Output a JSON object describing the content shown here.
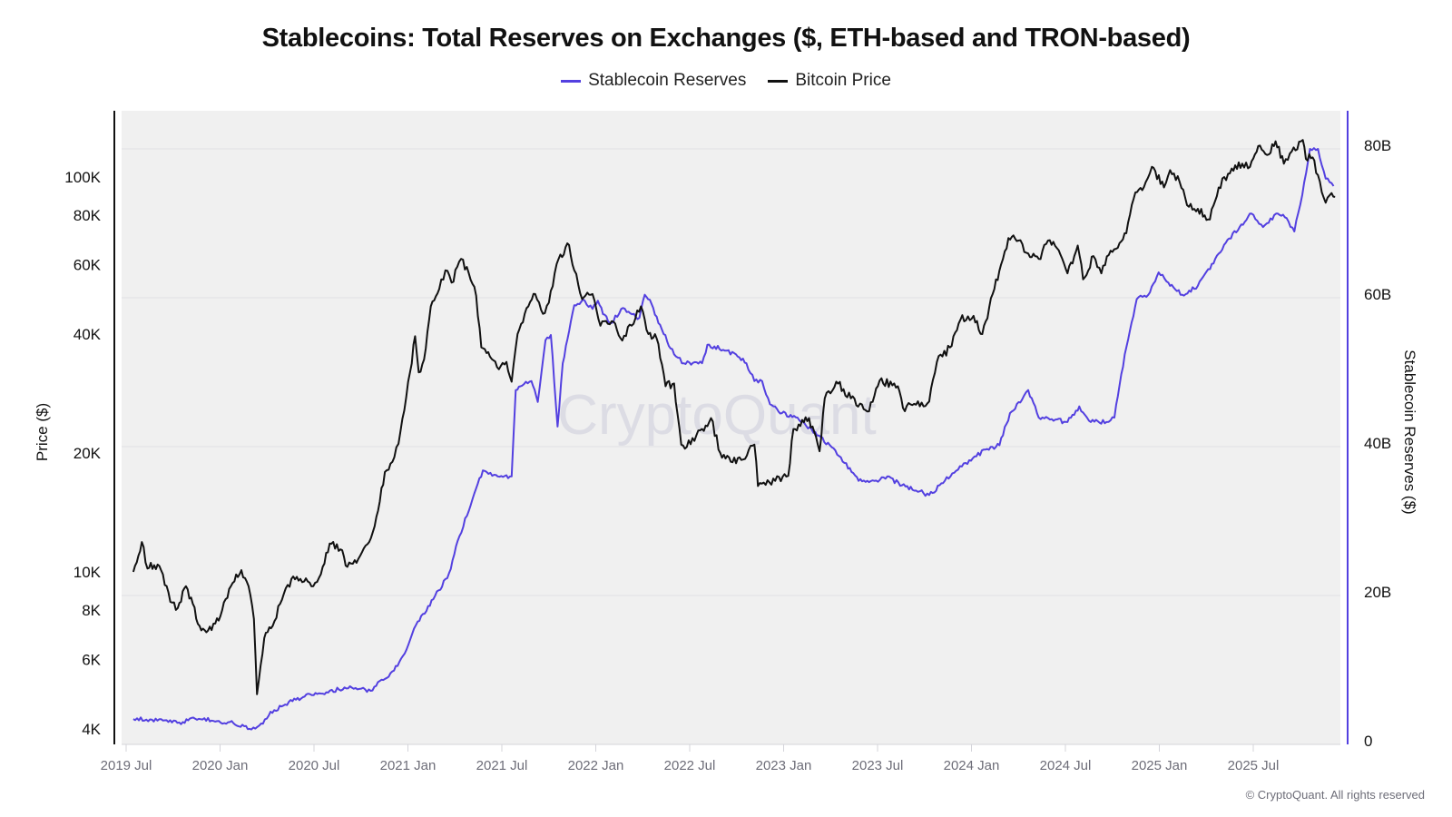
{
  "chart_data": {
    "type": "line",
    "title": "Stablecoins: Total Reserves on Exchanges ($, ETH-based and TRON-based)",
    "legend": {
      "placement": "top-center",
      "entries": [
        {
          "name": "Stablecoin Reserves",
          "color": "#5340e0"
        },
        {
          "name": "Bitcoin Price",
          "color": "#111111"
        }
      ]
    },
    "watermark": "CryptoQuant",
    "copyright": "© CryptoQuant. All rights reserved",
    "x_axis": {
      "type": "time",
      "range": [
        "2019-07-01",
        "2025-12-15"
      ],
      "ticks": [
        {
          "date": "2019-07-01",
          "label": "2019 Jul"
        },
        {
          "date": "2020-01-01",
          "label": "2020 Jan"
        },
        {
          "date": "2020-07-01",
          "label": "2020 Jul"
        },
        {
          "date": "2021-01-01",
          "label": "2021 Jan"
        },
        {
          "date": "2021-07-01",
          "label": "2021 Jul"
        },
        {
          "date": "2022-01-01",
          "label": "2022 Jan"
        },
        {
          "date": "2022-07-01",
          "label": "2022 Jul"
        },
        {
          "date": "2023-01-01",
          "label": "2023 Jan"
        },
        {
          "date": "2023-07-01",
          "label": "2023 Jul"
        },
        {
          "date": "2024-01-01",
          "label": "2024 Jan"
        },
        {
          "date": "2024-07-01",
          "label": "2024 Jul"
        },
        {
          "date": "2025-01-01",
          "label": "2025 Jan"
        },
        {
          "date": "2025-07-01",
          "label": "2025 Jul"
        }
      ]
    },
    "y_left": {
      "label": "Price ($)",
      "scale": "log",
      "range": [
        4000,
        130000
      ],
      "ticks": [
        {
          "value": 4000,
          "label": "4K"
        },
        {
          "value": 6000,
          "label": "6K"
        },
        {
          "value": 8000,
          "label": "8K"
        },
        {
          "value": 10000,
          "label": "10K"
        },
        {
          "value": 20000,
          "label": "20K"
        },
        {
          "value": 40000,
          "label": "40K"
        },
        {
          "value": 60000,
          "label": "60K"
        },
        {
          "value": 80000,
          "label": "80K"
        },
        {
          "value": 100000,
          "label": "100K"
        }
      ]
    },
    "y_right": {
      "label": "Stablecoin Reserves ($)",
      "scale": "linear",
      "unit": "B",
      "range": [
        0,
        84
      ],
      "ticks": [
        {
          "value": 0,
          "label": "0"
        },
        {
          "value": 20,
          "label": "20B"
        },
        {
          "value": 40,
          "label": "40B"
        },
        {
          "value": 60,
          "label": "60B"
        },
        {
          "value": 80,
          "label": "80B"
        }
      ],
      "grid": true
    },
    "series": [
      {
        "name": "Bitcoin Price",
        "axis": "left",
        "unit": "USD",
        "points": [
          [
            "2019-07-15",
            10000
          ],
          [
            "2019-08-01",
            11900
          ],
          [
            "2019-08-12",
            10200
          ],
          [
            "2019-08-25",
            10400
          ],
          [
            "2019-09-08",
            10100
          ],
          [
            "2019-09-26",
            8400
          ],
          [
            "2019-10-10",
            8100
          ],
          [
            "2019-10-26",
            9200
          ],
          [
            "2019-11-09",
            8300
          ],
          [
            "2019-11-22",
            7300
          ],
          [
            "2019-12-08",
            7100
          ],
          [
            "2019-12-22",
            7400
          ],
          [
            "2020-01-05",
            8000
          ],
          [
            "2020-01-22",
            9200
          ],
          [
            "2020-02-12",
            10100
          ],
          [
            "2020-02-26",
            9200
          ],
          [
            "2020-03-06",
            7600
          ],
          [
            "2020-03-12",
            4900
          ],
          [
            "2020-03-26",
            6800
          ],
          [
            "2020-04-12",
            7300
          ],
          [
            "2020-04-30",
            8500
          ],
          [
            "2020-05-18",
            9600
          ],
          [
            "2020-06-05",
            9600
          ],
          [
            "2020-06-30",
            9200
          ],
          [
            "2020-07-18",
            10300
          ],
          [
            "2020-08-01",
            11800
          ],
          [
            "2020-08-22",
            11400
          ],
          [
            "2020-09-05",
            10300
          ],
          [
            "2020-09-30",
            11000
          ],
          [
            "2020-10-17",
            11900
          ],
          [
            "2020-10-31",
            13800
          ],
          [
            "2020-11-17",
            17900
          ],
          [
            "2020-12-05",
            19500
          ],
          [
            "2020-12-17",
            22700
          ],
          [
            "2021-01-05",
            32000
          ],
          [
            "2021-01-15",
            39500
          ],
          [
            "2021-01-22",
            32000
          ],
          [
            "2021-02-02",
            34500
          ],
          [
            "2021-02-15",
            47000
          ],
          [
            "2021-03-01",
            52000
          ],
          [
            "2021-03-13",
            58000
          ],
          [
            "2021-03-25",
            54000
          ],
          [
            "2021-04-13",
            62000
          ],
          [
            "2021-04-28",
            57000
          ],
          [
            "2021-05-12",
            50000
          ],
          [
            "2021-05-22",
            37000
          ],
          [
            "2021-06-05",
            36000
          ],
          [
            "2021-06-22",
            33000
          ],
          [
            "2021-07-10",
            34000
          ],
          [
            "2021-07-20",
            30300
          ],
          [
            "2021-08-01",
            40000
          ],
          [
            "2021-08-22",
            47000
          ],
          [
            "2021-09-05",
            50500
          ],
          [
            "2021-09-20",
            45000
          ],
          [
            "2021-10-01",
            48000
          ],
          [
            "2021-10-20",
            62000
          ],
          [
            "2021-11-10",
            67200
          ],
          [
            "2021-11-20",
            58000
          ],
          [
            "2021-12-05",
            49000
          ],
          [
            "2021-12-25",
            50500
          ],
          [
            "2022-01-10",
            42000
          ],
          [
            "2022-02-05",
            43000
          ],
          [
            "2022-02-22",
            38500
          ],
          [
            "2022-03-28",
            47000
          ],
          [
            "2022-04-12",
            40000
          ],
          [
            "2022-04-28",
            39000
          ],
          [
            "2022-05-15",
            29500
          ],
          [
            "2022-06-01",
            30000
          ],
          [
            "2022-06-15",
            21000
          ],
          [
            "2022-06-22",
            20500
          ],
          [
            "2022-07-25",
            23000
          ],
          [
            "2022-08-12",
            24500
          ],
          [
            "2022-08-30",
            20000
          ],
          [
            "2022-09-20",
            19000
          ],
          [
            "2022-10-10",
            19200
          ],
          [
            "2022-11-05",
            21000
          ],
          [
            "2022-11-12",
            16500
          ],
          [
            "2022-12-15",
            17000
          ],
          [
            "2023-01-10",
            17500
          ],
          [
            "2023-01-20",
            23000
          ],
          [
            "2023-02-20",
            24500
          ],
          [
            "2023-03-10",
            20200
          ],
          [
            "2023-03-20",
            27500
          ],
          [
            "2023-04-12",
            30300
          ],
          [
            "2023-05-10",
            27500
          ],
          [
            "2023-06-15",
            25500
          ],
          [
            "2023-07-05",
            30500
          ],
          [
            "2023-08-10",
            29500
          ],
          [
            "2023-08-20",
            26000
          ],
          [
            "2023-09-15",
            26500
          ],
          [
            "2023-10-10",
            27000
          ],
          [
            "2023-10-25",
            34000
          ],
          [
            "2023-11-20",
            37000
          ],
          [
            "2023-12-10",
            43500
          ],
          [
            "2024-01-05",
            44500
          ],
          [
            "2024-01-22",
            40000
          ],
          [
            "2024-02-15",
            52000
          ],
          [
            "2024-02-28",
            60000
          ],
          [
            "2024-03-12",
            70000
          ],
          [
            "2024-04-01",
            69000
          ],
          [
            "2024-04-20",
            64000
          ],
          [
            "2024-05-10",
            62000
          ],
          [
            "2024-05-28",
            69000
          ],
          [
            "2024-06-15",
            66000
          ],
          [
            "2024-07-05",
            57000
          ],
          [
            "2024-07-25",
            67000
          ],
          [
            "2024-08-05",
            55000
          ],
          [
            "2024-08-25",
            63000
          ],
          [
            "2024-09-10",
            57000
          ],
          [
            "2024-09-28",
            65000
          ],
          [
            "2024-10-15",
            68000
          ],
          [
            "2024-10-28",
            72000
          ],
          [
            "2024-11-12",
            88000
          ],
          [
            "2024-12-05",
            97000
          ],
          [
            "2024-12-17",
            106000
          ],
          [
            "2025-01-10",
            94000
          ],
          [
            "2025-01-22",
            104000
          ],
          [
            "2025-02-10",
            97000
          ],
          [
            "2025-02-28",
            84000
          ],
          [
            "2025-03-15",
            83000
          ],
          [
            "2025-04-08",
            78000
          ],
          [
            "2025-04-25",
            94000
          ],
          [
            "2025-05-20",
            105000
          ],
          [
            "2025-06-10",
            108000
          ],
          [
            "2025-06-25",
            106000
          ],
          [
            "2025-07-14",
            120000
          ],
          [
            "2025-08-01",
            114000
          ],
          [
            "2025-08-14",
            123000
          ],
          [
            "2025-08-30",
            108000
          ],
          [
            "2025-09-15",
            116000
          ],
          [
            "2025-10-06",
            124000
          ],
          [
            "2025-10-12",
            111000
          ],
          [
            "2025-10-25",
            112000
          ],
          [
            "2025-11-05",
            101000
          ],
          [
            "2025-11-20",
            86000
          ],
          [
            "2025-12-01",
            91000
          ],
          [
            "2025-12-08",
            89000
          ]
        ]
      },
      {
        "name": "Stablecoin Reserves",
        "axis": "right",
        "unit": "USD billions",
        "points": [
          [
            "2019-07-15",
            3.4
          ],
          [
            "2019-09-01",
            3.2
          ],
          [
            "2019-10-20",
            3.0
          ],
          [
            "2019-11-10",
            3.6
          ],
          [
            "2019-12-15",
            3.2
          ],
          [
            "2020-01-20",
            3.0
          ],
          [
            "2020-03-01",
            2.0
          ],
          [
            "2020-03-20",
            2.8
          ],
          [
            "2020-04-15",
            4.6
          ],
          [
            "2020-05-20",
            5.8
          ],
          [
            "2020-06-20",
            6.8
          ],
          [
            "2020-07-25",
            7.0
          ],
          [
            "2020-09-10",
            7.8
          ],
          [
            "2020-10-20",
            7.2
          ],
          [
            "2020-12-01",
            9.8
          ],
          [
            "2020-12-25",
            12.2
          ],
          [
            "2021-01-20",
            16.5
          ],
          [
            "2021-02-20",
            19.5
          ],
          [
            "2021-03-20",
            23.0
          ],
          [
            "2021-04-10",
            28.0
          ],
          [
            "2021-05-05",
            33.0
          ],
          [
            "2021-05-25",
            36.8
          ],
          [
            "2021-06-20",
            36.2
          ],
          [
            "2021-07-20",
            36.0
          ],
          [
            "2021-07-28",
            47.6
          ],
          [
            "2021-08-10",
            48.2
          ],
          [
            "2021-08-28",
            48.8
          ],
          [
            "2021-09-10",
            46.0
          ],
          [
            "2021-09-25",
            54.3
          ],
          [
            "2021-10-05",
            55.0
          ],
          [
            "2021-10-18",
            42.7
          ],
          [
            "2021-10-28",
            51.2
          ],
          [
            "2021-11-10",
            55.5
          ],
          [
            "2021-11-20",
            59.0
          ],
          [
            "2021-12-10",
            59.6
          ],
          [
            "2021-12-25",
            58.5
          ],
          [
            "2022-01-05",
            59.6
          ],
          [
            "2022-01-15",
            57.8
          ],
          [
            "2022-02-01",
            56.6
          ],
          [
            "2022-02-20",
            58.5
          ],
          [
            "2022-03-25",
            57.3
          ],
          [
            "2022-04-05",
            60.4
          ],
          [
            "2022-04-18",
            59.2
          ],
          [
            "2022-05-01",
            56.6
          ],
          [
            "2022-06-01",
            52.4
          ],
          [
            "2022-06-20",
            51.2
          ],
          [
            "2022-07-25",
            51.2
          ],
          [
            "2022-08-05",
            53.7
          ],
          [
            "2022-09-05",
            53.0
          ],
          [
            "2022-09-30",
            52.4
          ],
          [
            "2022-10-20",
            51.2
          ],
          [
            "2022-11-05",
            48.8
          ],
          [
            "2022-11-20",
            48.8
          ],
          [
            "2022-12-05",
            45.7
          ],
          [
            "2022-12-28",
            44.5
          ],
          [
            "2023-01-28",
            43.9
          ],
          [
            "2023-03-05",
            41.5
          ],
          [
            "2023-03-30",
            40.2
          ],
          [
            "2023-04-28",
            37.8
          ],
          [
            "2023-05-25",
            35.4
          ],
          [
            "2023-06-25",
            35.4
          ],
          [
            "2023-07-20",
            36.0
          ],
          [
            "2023-08-18",
            34.8
          ],
          [
            "2023-09-15",
            34.1
          ],
          [
            "2023-10-10",
            33.5
          ],
          [
            "2023-11-10",
            35.4
          ],
          [
            "2023-12-20",
            37.8
          ],
          [
            "2024-01-28",
            39.6
          ],
          [
            "2024-02-25",
            40.2
          ],
          [
            "2024-03-15",
            44.5
          ],
          [
            "2024-04-08",
            46.3
          ],
          [
            "2024-04-20",
            47.6
          ],
          [
            "2024-05-10",
            43.9
          ],
          [
            "2024-06-05",
            43.7
          ],
          [
            "2024-07-05",
            43.3
          ],
          [
            "2024-07-28",
            45.4
          ],
          [
            "2024-08-20",
            43.3
          ],
          [
            "2024-09-20",
            43.3
          ],
          [
            "2024-10-05",
            43.9
          ],
          [
            "2024-10-25",
            52.4
          ],
          [
            "2024-11-18",
            59.8
          ],
          [
            "2024-12-10",
            60.4
          ],
          [
            "2024-12-30",
            63.4
          ],
          [
            "2025-01-15",
            62.2
          ],
          [
            "2025-02-15",
            60.4
          ],
          [
            "2025-03-15",
            61.6
          ],
          [
            "2025-04-15",
            64.6
          ],
          [
            "2025-05-05",
            67.1
          ],
          [
            "2025-06-05",
            69.5
          ],
          [
            "2025-06-28",
            71.3
          ],
          [
            "2025-07-20",
            69.5
          ],
          [
            "2025-08-15",
            71.3
          ],
          [
            "2025-09-05",
            70.7
          ],
          [
            "2025-09-20",
            68.9
          ],
          [
            "2025-10-05",
            73.8
          ],
          [
            "2025-10-20",
            80.0
          ],
          [
            "2025-11-05",
            80.0
          ],
          [
            "2025-11-20",
            76.0
          ],
          [
            "2025-12-05",
            75.0
          ]
        ]
      }
    ]
  }
}
